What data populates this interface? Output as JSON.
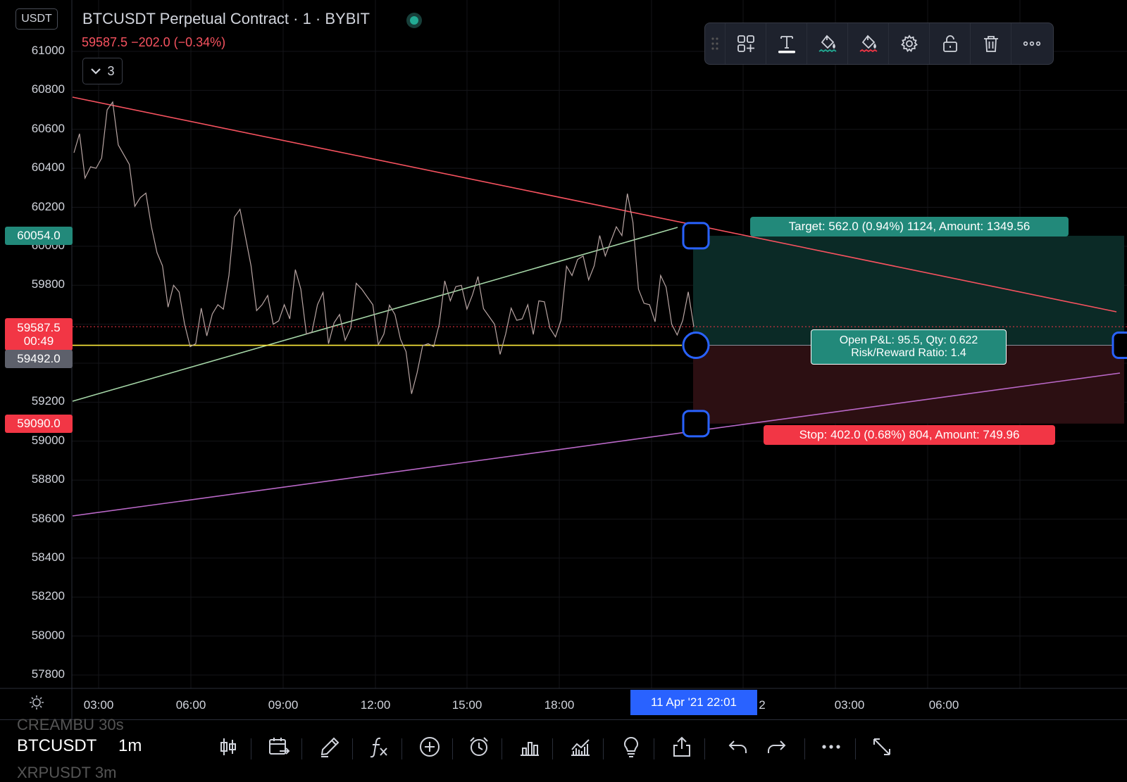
{
  "legend": {
    "title": "BTCUSDT Perpetual Contract · 1 · BYBIT",
    "price_change": "59587.5 −202.0 (−0.34%)",
    "currency": "USDT",
    "collapsed_count": "3"
  },
  "drawing_toolbar": {
    "items": [
      "grip-icon",
      "add-to-favorites-icon",
      "text-icon",
      "fill-color-icon",
      "line-color-icon",
      "settings-icon",
      "unlock-icon",
      "delete-icon",
      "more-icon"
    ],
    "active": "text-icon"
  },
  "price_axis": {
    "ticks": [
      "61000",
      "60800",
      "60600",
      "60400",
      "60200",
      "60000",
      "59800",
      "59200",
      "59000",
      "58800",
      "58600",
      "58400",
      "58200",
      "58000",
      "57800"
    ],
    "tags": {
      "target": "60054.0",
      "last_price": "59587.5",
      "countdown": "00:49",
      "entry": "59492.0",
      "stop": "59090.0"
    }
  },
  "time_axis": {
    "ticks": [
      "03:00",
      "06:00",
      "09:00",
      "12:00",
      "15:00",
      "18:00",
      "2",
      "03:00",
      "06:00"
    ],
    "crosshair_label": "11 Apr '21   22:01"
  },
  "position": {
    "target_label": "Target: 562.0 (0.94%) 1124, Amount: 1349.56",
    "stop_label": "Stop: 402.0 (0.68%) 804, Amount: 749.96",
    "pnl_line1": "Open P&L: 95.5, Qty: 0.622",
    "pnl_line2": "Risk/Reward Ratio: 1.4",
    "entry_price": 59492.0,
    "target_price": 60054.0,
    "stop_price": 59090.0
  },
  "chart_data": {
    "type": "line",
    "symbol": "BTCUSDT",
    "interval": "1",
    "ylim": [
      57700,
      61100
    ],
    "price_series": [
      60480,
      60350,
      60400,
      60700,
      60520,
      60420,
      60250,
      60100,
      59900,
      59800,
      59600,
      59500,
      59540,
      59700,
      59850,
      60190,
      59900,
      59700,
      59600,
      59700,
      59880,
      59550,
      59700,
      59500,
      59650,
      59580,
      59780,
      59700,
      59550,
      59650,
      59460,
      59350,
      59500,
      59600,
      59720,
      59800,
      59750,
      59680,
      59600,
      59550,
      59620,
      59700,
      59720,
      59580,
      59620,
      59850,
      59950,
      59900,
      59950,
      60100,
      60270,
      59780,
      59700,
      59850,
      59600,
      59620,
      59587.5
    ],
    "trend_lines": [
      {
        "name": "resistance",
        "color": "#f7525f"
      },
      {
        "name": "rising support",
        "color": "#a5d6a7"
      },
      {
        "name": "lower support",
        "color": "#ba68c8"
      },
      {
        "name": "entry level",
        "color": "#ffeb3b"
      }
    ]
  },
  "bottom_toolbar": {
    "watch_prev": "CREAMBU   30s",
    "symbol": "BTCUSDT",
    "interval": "1m",
    "watch_next": "XRPUSDT    3m",
    "buttons": [
      "candles-icon",
      "compare-date-icon",
      "draw-pen-icon",
      "indicators-fx-icon",
      "add-plus-icon",
      "alert-clock-icon",
      "bar-chart-icon",
      "strategy-chart-icon",
      "idea-bulb-icon",
      "share-icon",
      "undo-icon",
      "redo-icon",
      "more-icon",
      "fullscreen-icon"
    ]
  }
}
